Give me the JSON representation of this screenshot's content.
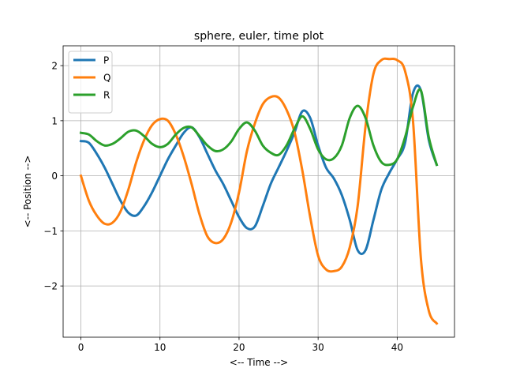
{
  "chart_data": {
    "type": "line",
    "title": "sphere, euler, time plot",
    "xlabel": "<-- Time -->",
    "ylabel": "<-- Position -->",
    "xlim": [
      -2.25,
      47.25
    ],
    "ylim": [
      -2.93,
      2.36
    ],
    "xticks": [
      0,
      10,
      20,
      30,
      40
    ],
    "yticks": [
      -2,
      -1,
      0,
      1,
      2
    ],
    "ytick_labels": [
      "−2",
      "−1",
      "0",
      "1",
      "2"
    ],
    "grid": true,
    "legend_position": "top-left",
    "colors": {
      "P": "#1f77b4",
      "Q": "#ff7f0e",
      "R": "#2ca02c",
      "grid": "#b0b0b0"
    },
    "series": [
      {
        "name": "P",
        "color": "#1f77b4",
        "x": [
          0,
          1,
          2,
          3,
          4,
          5,
          6,
          7,
          8,
          9,
          10,
          11,
          12,
          13,
          14,
          15,
          16,
          17,
          18,
          19,
          20,
          21,
          22,
          23,
          24,
          25,
          26,
          27,
          28,
          29,
          30,
          31,
          32,
          33,
          34,
          35,
          36,
          37,
          38,
          39,
          40,
          41,
          42,
          43,
          44,
          45
        ],
        "y": [
          0.63,
          0.6,
          0.4,
          0.15,
          -0.15,
          -0.45,
          -0.67,
          -0.72,
          -0.55,
          -0.3,
          0.0,
          0.3,
          0.55,
          0.78,
          0.88,
          0.7,
          0.4,
          0.1,
          -0.15,
          -0.45,
          -0.75,
          -0.95,
          -0.92,
          -0.55,
          -0.15,
          0.15,
          0.45,
          0.78,
          1.17,
          1.05,
          0.55,
          0.15,
          -0.05,
          -0.35,
          -0.8,
          -1.35,
          -1.35,
          -0.8,
          -0.25,
          0.05,
          0.3,
          0.6,
          1.5,
          1.55,
          0.65,
          0.2
        ]
      },
      {
        "name": "Q",
        "color": "#ff7f0e",
        "x": [
          0,
          1,
          2,
          3,
          4,
          5,
          6,
          7,
          8,
          9,
          10,
          11,
          12,
          13,
          14,
          15,
          16,
          17,
          18,
          19,
          20,
          21,
          22,
          23,
          24,
          25,
          26,
          27,
          28,
          29,
          30,
          31,
          32,
          33,
          34,
          35,
          36,
          37,
          38,
          39,
          40,
          41,
          42,
          43,
          44,
          45
        ],
        "y": [
          0.0,
          -0.45,
          -0.72,
          -0.87,
          -0.85,
          -0.65,
          -0.25,
          0.25,
          0.65,
          0.92,
          1.03,
          1.0,
          0.75,
          0.35,
          -0.15,
          -0.7,
          -1.1,
          -1.22,
          -1.15,
          -0.85,
          -0.3,
          0.45,
          0.95,
          1.3,
          1.43,
          1.42,
          1.2,
          0.8,
          0.1,
          -0.75,
          -1.45,
          -1.7,
          -1.73,
          -1.65,
          -1.3,
          -0.55,
          0.9,
          1.85,
          2.1,
          2.12,
          2.1,
          1.9,
          1.0,
          -1.5,
          -2.45,
          -2.68
        ]
      },
      {
        "name": "R",
        "color": "#2ca02c",
        "x": [
          0,
          1,
          2,
          3,
          4,
          5,
          6,
          7,
          8,
          9,
          10,
          11,
          12,
          13,
          14,
          15,
          16,
          17,
          18,
          19,
          20,
          21,
          22,
          23,
          24,
          25,
          26,
          27,
          28,
          29,
          30,
          31,
          32,
          33,
          34,
          35,
          36,
          37,
          38,
          39,
          40,
          41,
          42,
          43,
          44,
          45
        ],
        "y": [
          0.78,
          0.75,
          0.63,
          0.55,
          0.58,
          0.68,
          0.8,
          0.82,
          0.72,
          0.58,
          0.52,
          0.58,
          0.75,
          0.87,
          0.88,
          0.72,
          0.55,
          0.45,
          0.48,
          0.62,
          0.85,
          0.97,
          0.82,
          0.55,
          0.42,
          0.38,
          0.55,
          0.85,
          1.08,
          0.85,
          0.48,
          0.3,
          0.32,
          0.55,
          1.05,
          1.27,
          1.05,
          0.55,
          0.25,
          0.2,
          0.3,
          0.7,
          1.25,
          1.55,
          0.7,
          0.2
        ]
      }
    ]
  }
}
